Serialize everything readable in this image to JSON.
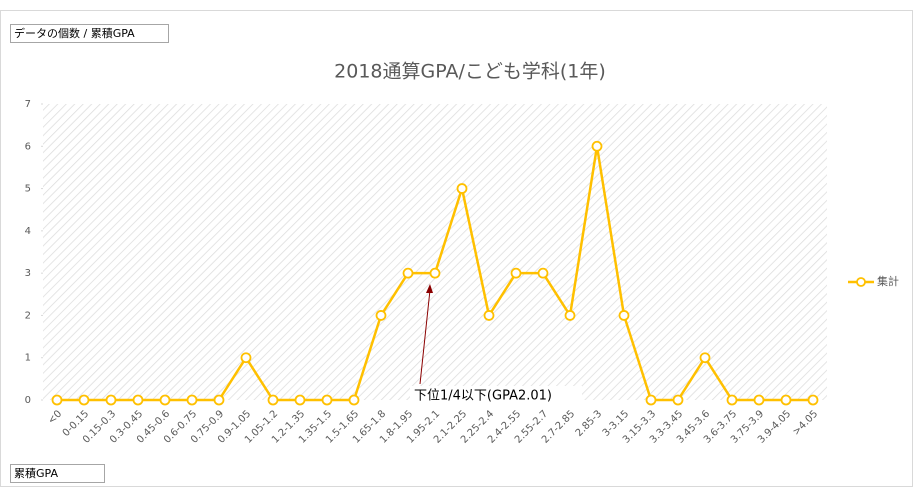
{
  "field_buttons": {
    "top": "データの個数 / 累積GPA",
    "bottom": "累積GPA"
  },
  "chart_data": {
    "type": "line",
    "title": "2018通算GPA/こども学科(1年)",
    "categories": [
      "<0",
      "0-0.15",
      "0.15-0.3",
      "0.3-0.45",
      "0.45-0.6",
      "0.6-0.75",
      "0.75-0.9",
      "0.9-1.05",
      "1.05-1.2",
      "1.2-1.35",
      "1.35-1.5",
      "1.5-1.65",
      "1.65-1.8",
      "1.8-1.95",
      "1.95-2.1",
      "2.1-2.25",
      "2.25-2.4",
      "2.4-2.55",
      "2.55-2.7",
      "2.7-2.85",
      "2.85-3",
      "3-3.15",
      "3.15-3.3",
      "3.3-3.45",
      "3.45-3.6",
      "3.6-3.75",
      "3.75-3.9",
      "3.9-4.05",
      ">4.05"
    ],
    "series": [
      {
        "name": "集計",
        "color": "#ffc000",
        "values": [
          0,
          0,
          0,
          0,
          0,
          0,
          0,
          1,
          0,
          0,
          0,
          0,
          2,
          3,
          3,
          5,
          2,
          3,
          3,
          2,
          6,
          2,
          0,
          0,
          1,
          0,
          0,
          0,
          0
        ]
      }
    ],
    "ylim": [
      0,
      7
    ],
    "yticks": [
      0,
      1,
      2,
      3,
      4,
      5,
      6,
      7
    ],
    "legend": "right",
    "annotation": "下位1/4以下(GPA2.01)"
  }
}
